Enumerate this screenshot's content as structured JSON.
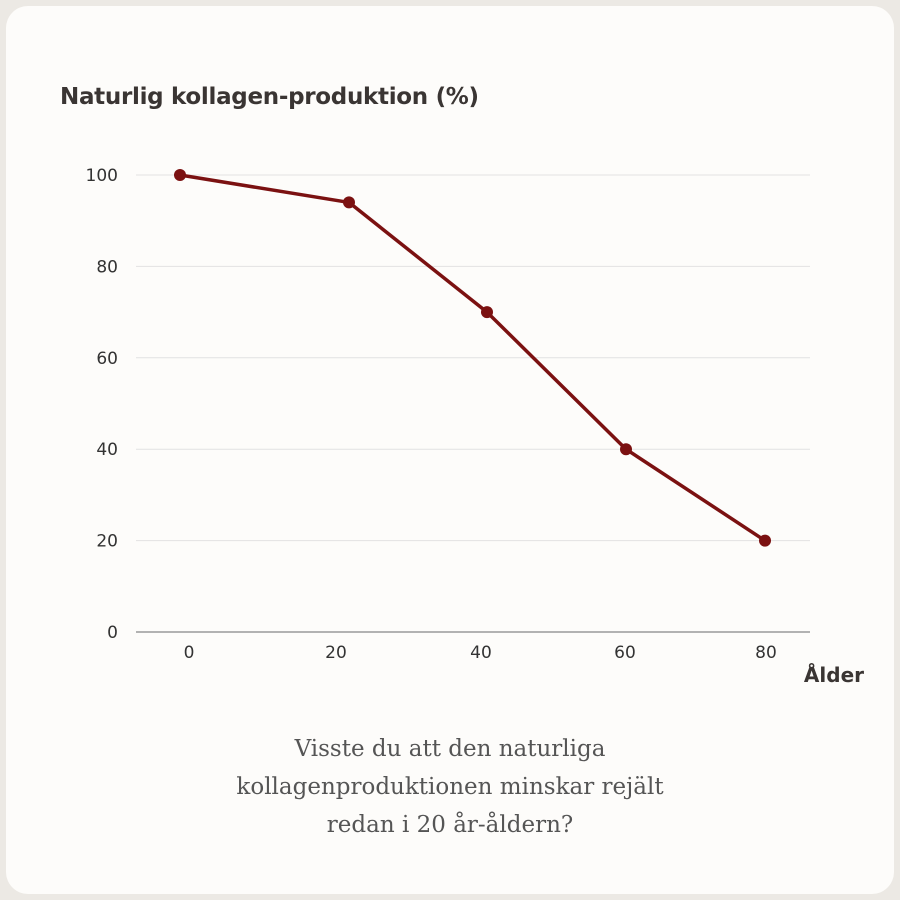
{
  "chart_data": {
    "type": "line",
    "title": "Naturlig kollagen-produktion (%)",
    "xlabel": "Ålder",
    "ylabel": "",
    "x": [
      0,
      20,
      40,
      60,
      80
    ],
    "xticks": [
      "0",
      "20",
      "40",
      "60",
      "80"
    ],
    "yticks": [
      "0",
      "20",
      "40",
      "60",
      "80",
      "100"
    ],
    "ylim": [
      0,
      100
    ],
    "series": [
      {
        "values": [
          100,
          94,
          70,
          40,
          20
        ]
      }
    ],
    "grid": true,
    "line_color": "#7b1111"
  },
  "caption": {
    "lines": [
      "Visste du att den naturliga",
      "kollagenproduktionen minskar rejält",
      "redan i 20 år-åldern?"
    ]
  }
}
